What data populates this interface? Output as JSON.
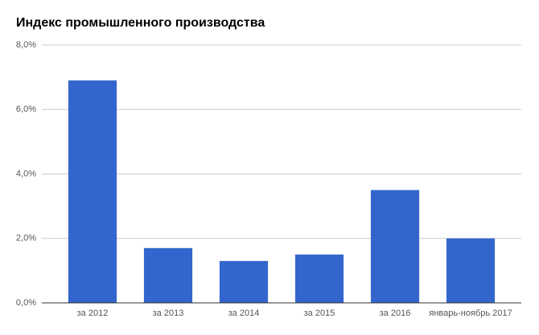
{
  "chart_data": {
    "type": "bar",
    "title": "Индекс промышленного производства",
    "categories": [
      "за 2012",
      "за 2013",
      "за 2014",
      "за 2015",
      "за 2016",
      "январь-ноябрь 2017"
    ],
    "values": [
      6.9,
      1.7,
      1.3,
      1.5,
      3.5,
      2.0
    ],
    "color": "#3366cc",
    "ylim": [
      0,
      8
    ],
    "yticks": [
      {
        "value": 0,
        "label": "0,0%"
      },
      {
        "value": 2,
        "label": "2,0%"
      },
      {
        "value": 4,
        "label": "4,0%"
      },
      {
        "value": 6,
        "label": "6,0%"
      },
      {
        "value": 8,
        "label": "8,0%"
      }
    ],
    "grid": true
  }
}
